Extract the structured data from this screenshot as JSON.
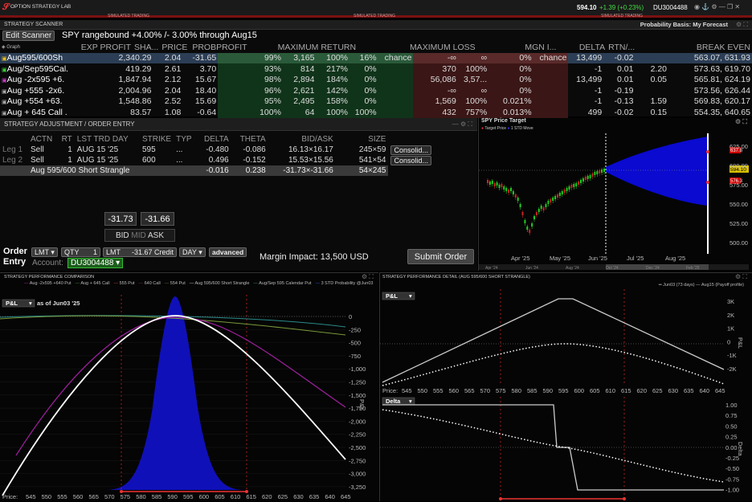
{
  "app": {
    "title": "OPTION STRATEGY LAB",
    "sim": "SIMULATED TRADING",
    "quote": "594.10",
    "change": "+1.39 (+0.23%)",
    "account": "DU3004488"
  },
  "scanner": {
    "title": "STRATEGY SCANNER",
    "prob_basis": "Probability Basis: My Forecast",
    "edit": "Edit Scanner",
    "desc": "SPY rangebound +4.00% /- 3.00% through Aug15",
    "graph": "Graph",
    "headers": [
      "EXP PROFIT",
      "SHA...",
      "PRICE",
      "PROBPROFIT",
      "MAXIMUM RETURN",
      "MAXIMUM LOSS",
      "MGN I...",
      "DELTA",
      "RTN/...",
      "BREAK EVEN"
    ],
    "rows": [
      {
        "name": "Aug595/600Sh",
        "ep": "2,340.29",
        "sh": "2.04",
        "pr": "-31.65",
        "pp": "99%",
        "mr1": "3,165",
        "mr2": "100%",
        "mr3": "16%",
        "mr4": "chance",
        "ml1": "-∞",
        "ml2": "∞",
        "ml3": "0%",
        "ml4": "chance",
        "mg": "13,499",
        "de": "-0.02",
        "rt": "",
        "be": "563.07, 631.93"
      },
      {
        "name": "Aug/Sep595Cal.",
        "ep": "419.29",
        "sh": "2.61",
        "pr": "3.70",
        "pp": "93%",
        "mr1": "814",
        "mr2": "217%",
        "mr3": "0%",
        "mr4": "",
        "ml1": "370",
        "ml2": "100%",
        "ml3": "0%",
        "ml4": "",
        "mg": "-1",
        "de": "0.01",
        "rt": "2.20",
        "be": "573.63, 619.70"
      },
      {
        "name": "Aug -2x595 +6.",
        "ep": "1,847.94",
        "sh": "2.12",
        "pr": "15.67",
        "pp": "98%",
        "mr1": "2,894",
        "mr2": "184%",
        "mr3": "0%",
        "mr4": "",
        "ml1": "56,086",
        "ml2": "3,57...",
        "ml3": "0%",
        "ml4": "",
        "mg": "13,499",
        "de": "0.01",
        "rt": "0.05",
        "be": "565.81, 624.19"
      },
      {
        "name": "Aug +555 -2x6.",
        "ep": "2,004.96",
        "sh": "2.04",
        "pr": "18.40",
        "pp": "96%",
        "mr1": "2,621",
        "mr2": "142%",
        "mr3": "0%",
        "mr4": "",
        "ml1": "-∞",
        "ml2": "∞",
        "ml3": "0%",
        "ml4": "",
        "mg": "-1",
        "de": "-0.19",
        "rt": "",
        "be": "573.56, 626.44"
      },
      {
        "name": "Aug +554 +63.",
        "ep": "1,548.86",
        "sh": "2.52",
        "pr": "15.69",
        "pp": "95%",
        "mr1": "2,495",
        "mr2": "158%",
        "mr3": "0%",
        "mr4": "",
        "ml1": "1,569",
        "ml2": "100%",
        "ml3": "0.021%",
        "ml4": "",
        "mg": "-1",
        "de": "-0.13",
        "rt": "1.59",
        "be": "569.83, 620.17"
      },
      {
        "name": "Aug + 645 Call .",
        "ep": "83.57",
        "sh": "1.08",
        "pr": "-0.64",
        "pp": "100%",
        "mr1": "64",
        "mr2": "100%",
        "mr3": "100%",
        "mr4": "",
        "ml1": "432",
        "ml2": "757%",
        "ml3": "0.013%",
        "ml4": "",
        "mg": "499",
        "de": "-0.02",
        "rt": "0.15",
        "be": "554.35, 640.65"
      }
    ]
  },
  "adjust": {
    "title": "STRATEGY ADJUSTMENT / ORDER ENTRY",
    "headers": [
      "ACTN",
      "RT",
      "LST TRD DAY",
      "STRIKE",
      "TYP",
      "DELTA",
      "THETA",
      "BID/ASK",
      "SIZE"
    ],
    "legs": [
      {
        "leg": "Leg 1",
        "actn": "Sell",
        "qty": "1",
        "day": "AUG 15 '25",
        "strike": "595",
        "typ": "...",
        "delta": "-0.480",
        "theta": "-0.086",
        "ba": "16.13×16.17",
        "size": "245×59",
        "btn": "Consolid..."
      },
      {
        "leg": "Leg 2",
        "actn": "Sell",
        "qty": "1",
        "day": "AUG 15 '25",
        "strike": "600",
        "typ": "...",
        "delta": "0.496",
        "theta": "-0.152",
        "ba": "15.53×15.56",
        "size": "541×54",
        "btn": "Consolid..."
      }
    ],
    "total": {
      "name": "Aug 595/600 Short Strangle",
      "delta": "-0.016",
      "theta": "0.238",
      "ba": "-31.73×-31.66",
      "size": "54×245"
    },
    "bid": "-31.73",
    "ask": "-31.66",
    "bid_lbl": "BID",
    "mid_lbl": "MID",
    "ask_lbl": "ASK",
    "order_lbl": "Order",
    "entry_lbl": "Entry",
    "type": "LMT",
    "qty_lbl": "QTY",
    "qty": "1",
    "lmt_lbl": "LMT",
    "lmt": "-31.67 Credit",
    "tif": "DAY",
    "adv": "advanced",
    "account_lbl": "Account:",
    "account": "DU3004488",
    "margin": "Margin Impact: 13,500 USD",
    "submit": "Submit Order"
  },
  "target": {
    "title": "SPY Price Target",
    "legend1": "Target Price",
    "legend2": "1 STD Move",
    "y_ticks": [
      "625.00",
      "600.00",
      "575.00",
      "550.00",
      "525.00",
      "500.00"
    ],
    "x_ticks": [
      "Apr '25",
      "May '25",
      "Jun '25",
      "Jul '25",
      "Aug '25"
    ],
    "tags": [
      "637.8",
      "594.10",
      "576.3"
    ],
    "mini_ticks": [
      "Apr '24",
      "Jun '24",
      "Aug '24",
      "Oct '24",
      "Dec '24",
      "Feb '25"
    ]
  },
  "perf": {
    "title": "STRATEGY PERFORMANCE COMPARISON",
    "pl": "P&L",
    "asof": "as of Jun03 '25",
    "legend": [
      "Aug -2x595 +640 Put",
      "Aug + 645 Call",
      "555 Put",
      "640 Call",
      "554 Put",
      "Aug 595/600 Short Strangle",
      "Aug/Sep 595 Calendar Put",
      "3 STD Probability @Jun03"
    ],
    "y_ticks": [
      "0",
      "-250",
      "-500",
      "-750",
      "-1,000",
      "-1,250",
      "-1,500",
      "-1,750",
      "-2,000",
      "-2,250",
      "-2,500",
      "-2,750",
      "-3,000",
      "-3,250"
    ],
    "x_ticks": [
      "545",
      "550",
      "555",
      "560",
      "565",
      "570",
      "575",
      "580",
      "585",
      "590",
      "595",
      "600",
      "605",
      "610",
      "615",
      "620",
      "625",
      "630",
      "635",
      "640",
      "645"
    ],
    "price": "Price:",
    "axis": "P&L"
  },
  "detail": {
    "title": "STRATEGY PERFORMANCE DETAIL (AUG 595/600 SHORT STRANGLE)",
    "leg1": "Jun03 (73 days)",
    "leg2": "Aug15 (Payoff profile)",
    "pl": "P&L",
    "delta": "Delta",
    "pl_ticks": [
      "3K",
      "2K",
      "1K",
      "0",
      "-1K",
      "-2K"
    ],
    "delta_ticks": [
      "1.00",
      "0.75",
      "0.50",
      "0.25",
      "0.00",
      "-0.25",
      "-0.50",
      "-0.75",
      "-1.00"
    ],
    "x_ticks": [
      "545",
      "550",
      "555",
      "560",
      "565",
      "570",
      "575",
      "580",
      "585",
      "590",
      "595",
      "600",
      "605",
      "610",
      "615",
      "620",
      "625",
      "630",
      "635",
      "640",
      "645"
    ],
    "price": "Price:",
    "axis1": "P&L",
    "axis2": "Delta"
  }
}
